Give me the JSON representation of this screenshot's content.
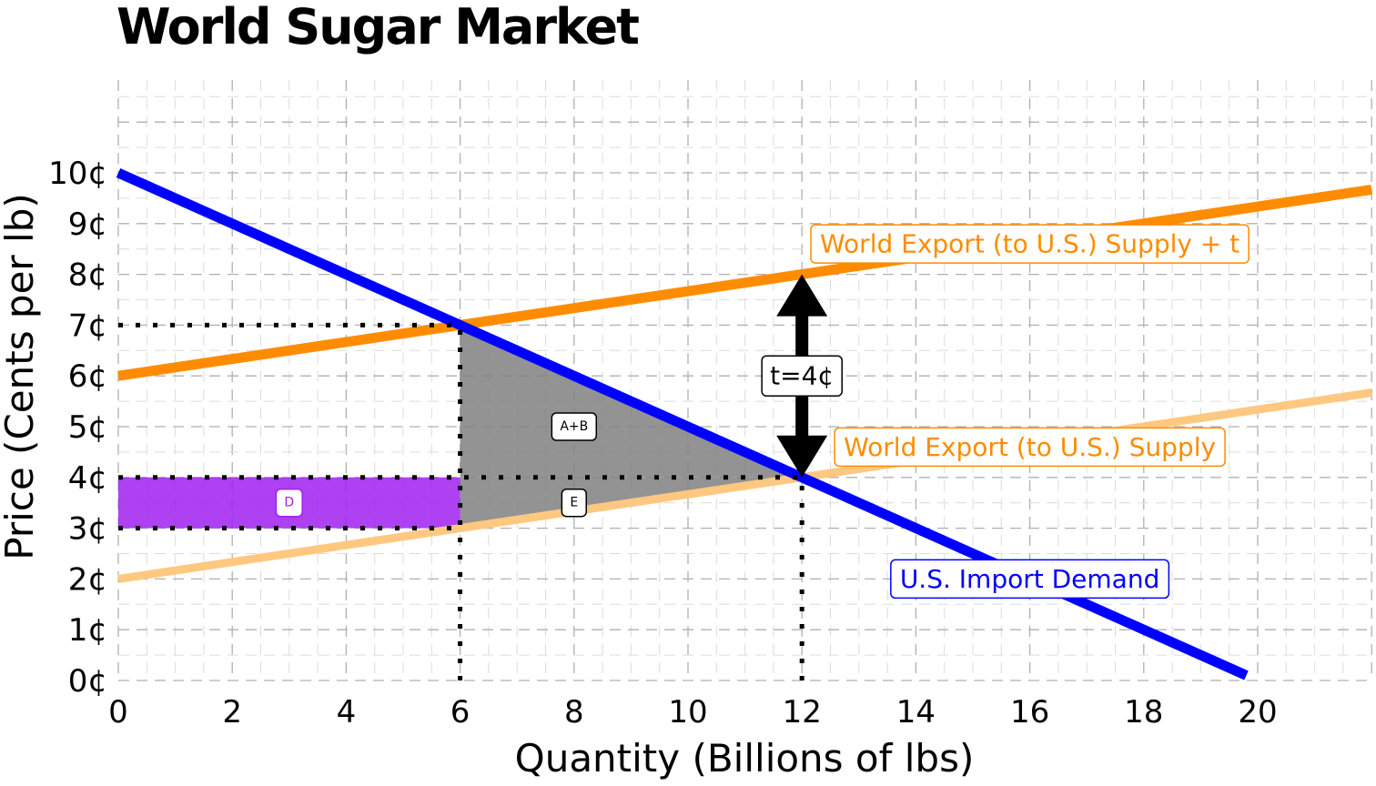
{
  "chart_data": {
    "type": "line",
    "title": "World Sugar Market",
    "xlabel": "Quantity (Billions of lbs)",
    "ylabel": "Price (Cents per lb)",
    "xlim": [
      0,
      22
    ],
    "ylim": [
      0,
      10
    ],
    "x_ticks": [
      0,
      2,
      4,
      6,
      8,
      10,
      12,
      14,
      16,
      18,
      20
    ],
    "x_tick_labels": [
      "0",
      "2",
      "4",
      "6",
      "8",
      "10",
      "12",
      "14",
      "16",
      "18",
      "20"
    ],
    "y_ticks": [
      0,
      1,
      2,
      3,
      4,
      5,
      6,
      7,
      8,
      9,
      10
    ],
    "y_tick_labels": [
      "0¢",
      "1¢",
      "2¢",
      "3¢",
      "4¢",
      "5¢",
      "6¢",
      "7¢",
      "8¢",
      "9¢",
      "10¢"
    ],
    "grid": true,
    "series": [
      {
        "name": "U.S. Import Demand",
        "x": [
          0,
          19.8
        ],
        "y": [
          10,
          0.1
        ],
        "color": "#0000ff"
      },
      {
        "name": "World Export (to U.S.) Supply + t",
        "x": [
          0,
          22
        ],
        "y": [
          6,
          9.67
        ],
        "color": "#ff8c00"
      },
      {
        "name": "World Export (to U.S.) Supply",
        "x": [
          0,
          22
        ],
        "y": [
          2,
          5.67
        ],
        "color": "#ffc880"
      }
    ],
    "areas": [
      {
        "label": "A+B",
        "points": [
          [
            6,
            7
          ],
          [
            12,
            4
          ],
          [
            6,
            4
          ]
        ],
        "color": "#808080"
      },
      {
        "label": "E",
        "points": [
          [
            6,
            4
          ],
          [
            12,
            4
          ],
          [
            6,
            3
          ]
        ],
        "color": "#808080"
      },
      {
        "label": "D",
        "points": [
          [
            0,
            4
          ],
          [
            6,
            4
          ],
          [
            6,
            3
          ],
          [
            0,
            3
          ]
        ],
        "color": "#a020f0"
      }
    ],
    "reference_lines": [
      {
        "from": [
          0,
          7
        ],
        "to": [
          6,
          7
        ]
      },
      {
        "from": [
          6,
          0
        ],
        "to": [
          6,
          7
        ]
      },
      {
        "from": [
          0,
          4
        ],
        "to": [
          12,
          4
        ]
      },
      {
        "from": [
          12,
          0
        ],
        "to": [
          12,
          4
        ]
      },
      {
        "from": [
          0,
          3
        ],
        "to": [
          6,
          3
        ]
      }
    ],
    "tariff_arrow": {
      "x": 12,
      "from": 4,
      "to": 8,
      "label": "t=4¢"
    },
    "annotations": [
      {
        "text": "World Export (to U.S.) Supply + t",
        "x": 16,
        "y": 8.6,
        "color": "#ff8c00"
      },
      {
        "text": "World Export (to U.S.) Supply",
        "x": 16,
        "y": 4.6,
        "color": "#ff8c00"
      },
      {
        "text": "U.S. Import Demand",
        "x": 16,
        "y": 2,
        "color": "#0000ff"
      }
    ]
  }
}
